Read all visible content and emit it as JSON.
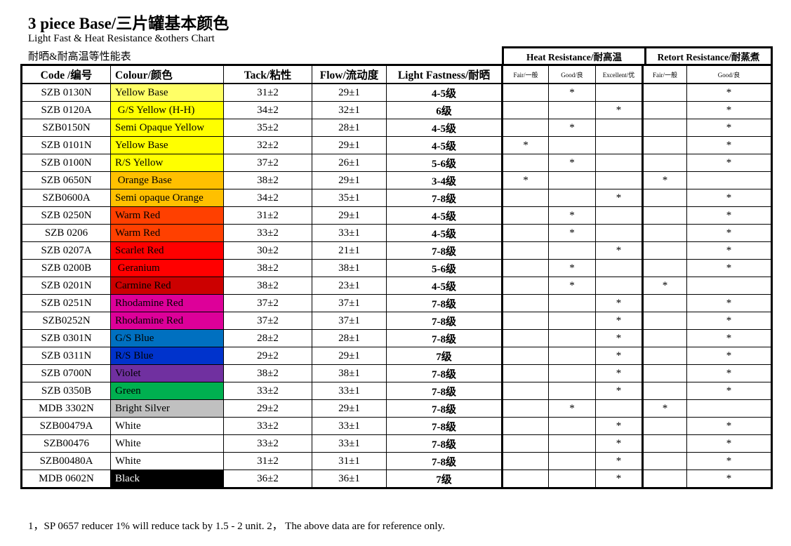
{
  "title": "3 piece Base/三片罐基本颜色",
  "subtitle_en": "Light Fast & Heat Resistance &others Chart",
  "subtitle_cn": "耐晒&耐高温等性能表",
  "group_headers": {
    "heat": "Heat Resistance/耐高温",
    "retort": "Retort Resistance/耐蒸煮"
  },
  "columns": [
    "Code /编号",
    "Colour/颜色",
    "Tack/粘性",
    "Flow/流动度",
    "Light Fastness/耐晒",
    "Fair/一般",
    "Good/良",
    "Excellent/优",
    "Fair/一般",
    "Good/良"
  ],
  "star": "*",
  "rows": [
    {
      "code": "SZB 0130N",
      "colour": "Yellow Base",
      "bg": "#ffff66",
      "fg": "#000",
      "tack": "31±2",
      "flow": "29±1",
      "lf": "4-5级",
      "heat": "Good",
      "retort": "Good"
    },
    {
      "code": "SZB 0120A",
      "colour": " G/S Yellow (H-H)",
      "bg": "#ffff00",
      "fg": "#000",
      "tack": "34±2",
      "flow": "32±1",
      "lf": "6级",
      "heat": "Excellent",
      "retort": "Good"
    },
    {
      "code": "SZB0150N",
      "colour": "Semi Opaque Yellow",
      "bg": "#ffff00",
      "fg": "#000",
      "tack": "35±2",
      "flow": "28±1",
      "lf": "4-5级",
      "heat": "Good",
      "retort": "Good"
    },
    {
      "code": "SZB 0101N",
      "colour": "Yellow Base",
      "bg": "#ffff00",
      "fg": "#000",
      "tack": "32±2",
      "flow": "29±1",
      "lf": "4-5级",
      "heat": "Fair",
      "retort": "Good"
    },
    {
      "code": "SZB 0100N",
      "colour": "R/S Yellow",
      "bg": "#ffff00",
      "fg": "#000",
      "tack": "37±2",
      "flow": "26±1",
      "lf": "5-6级",
      "heat": "Good",
      "retort": "Good"
    },
    {
      "code": "SZB 0650N",
      "colour": " Orange Base",
      "bg": "#ffc000",
      "fg": "#000",
      "tack": "38±2",
      "flow": "29±1",
      "lf": "3-4级",
      "heat": "Fair",
      "retort": "Fair"
    },
    {
      "code": "SZB0600A",
      "colour": "Semi opaque Orange",
      "bg": "#ffc000",
      "fg": "#000",
      "tack": "34±2",
      "flow": "35±1",
      "lf": "7-8级",
      "heat": "Excellent",
      "retort": "Good"
    },
    {
      "code": "SZB 0250N",
      "colour": "Warm Red",
      "bg": "#ff4000",
      "fg": "#000",
      "tack": "31±2",
      "flow": "29±1",
      "lf": "4-5级",
      "heat": "Good",
      "retort": "Good"
    },
    {
      "code": "SZB 0206",
      "colour": "Warm Red",
      "bg": "#ff4000",
      "fg": "#000",
      "tack": "33±2",
      "flow": "33±1",
      "lf": "4-5级",
      "heat": "Good",
      "retort": "Good"
    },
    {
      "code": "SZB 0207A",
      "colour": "Scarlet Red",
      "bg": "#ff0000",
      "fg": "#000",
      "tack": "30±2",
      "flow": "21±1",
      "lf": "7-8级",
      "heat": "Excellent",
      "retort": "Good"
    },
    {
      "code": "SZB 0200B",
      "colour": " Geranium",
      "bg": "#ff0000",
      "fg": "#000",
      "tack": "38±2",
      "flow": "38±1",
      "lf": "5-6级",
      "heat": "Good",
      "retort": "Good"
    },
    {
      "code": "SZB 0201N",
      "colour": "Carmine Red",
      "bg": "#cc0000",
      "fg": "#000",
      "tack": "38±2",
      "flow": "23±1",
      "lf": "4-5级",
      "heat": "Good",
      "retort": "Fair"
    },
    {
      "code": "SZB 0251N",
      "colour": "Rhodamine Red",
      "bg": "#dd0099",
      "fg": "#000",
      "tack": "37±2",
      "flow": "37±1",
      "lf": "7-8级",
      "heat": "Excellent",
      "retort": "Good"
    },
    {
      "code": "SZB0252N",
      "colour": "Rhodamine Red",
      "bg": "#dd0099",
      "fg": "#000",
      "tack": "37±2",
      "flow": "37±1",
      "lf": "7-8级",
      "heat": "Excellent",
      "retort": "Good"
    },
    {
      "code": "SZB 0301N",
      "colour": "G/S Blue",
      "bg": "#0070c0",
      "fg": "#000",
      "tack": "28±2",
      "flow": "28±1",
      "lf": "7-8级",
      "heat": "Excellent",
      "retort": "Good"
    },
    {
      "code": "SZB 0311N",
      "colour": "R/S Blue",
      "bg": "#0033cc",
      "fg": "#000",
      "tack": "29±2",
      "flow": "29±1",
      "lf": "7级",
      "heat": "Excellent",
      "retort": "Good"
    },
    {
      "code": "SZB 0700N",
      "colour": "Violet",
      "bg": "#7030a0",
      "fg": "#000",
      "tack": "38±2",
      "flow": "38±1",
      "lf": "7-8级",
      "heat": "Excellent",
      "retort": "Good"
    },
    {
      "code": "SZB 0350B",
      "colour": "Green",
      "bg": "#00b050",
      "fg": "#000",
      "tack": "33±2",
      "flow": "33±1",
      "lf": "7-8级",
      "heat": "Excellent",
      "retort": "Good"
    },
    {
      "code": "MDB 3302N",
      "colour": "Bright Silver",
      "bg": "#c0c0c0",
      "fg": "#000",
      "tack": "29±2",
      "flow": "29±1",
      "lf": "7-8级",
      "heat": "Good",
      "retort": "Fair"
    },
    {
      "code": "SZB00479A",
      "colour": "White",
      "bg": "#ffffff",
      "fg": "#000",
      "tack": "33±2",
      "flow": "33±1",
      "lf": "7-8级",
      "heat": "Excellent",
      "retort": "Good"
    },
    {
      "code": "SZB00476",
      "colour": "White",
      "bg": "#ffffff",
      "fg": "#000",
      "tack": "33±2",
      "flow": "33±1",
      "lf": "7-8级",
      "heat": "Excellent",
      "retort": "Good"
    },
    {
      "code": "SZB00480A",
      "colour": "White",
      "bg": "#ffffff",
      "fg": "#000",
      "tack": "31±2",
      "flow": "31±1",
      "lf": "7-8级",
      "heat": "Excellent",
      "retort": "Good"
    },
    {
      "code": "MDB 0602N",
      "colour": "Black",
      "bg": "#000000",
      "fg": "#ffffff",
      "tack": "36±2",
      "flow": "36±1",
      "lf": "7级",
      "heat": "Excellent",
      "retort": "Good"
    }
  ],
  "footnote": "1，SP 0657 reducer 1% will reduce tack by 1.5 - 2 unit. 2， The above data are for reference only."
}
